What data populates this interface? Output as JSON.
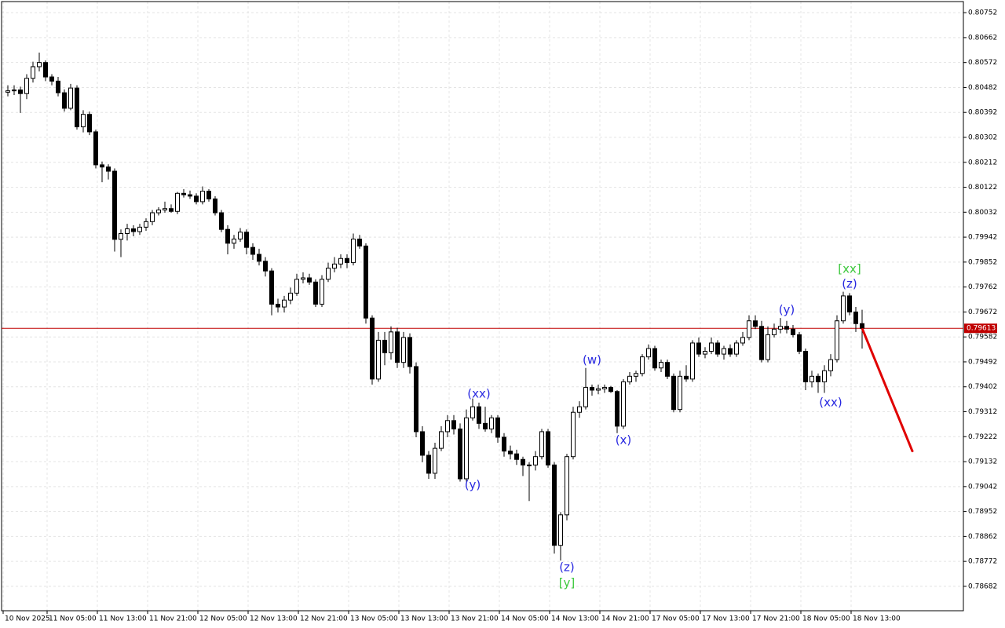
{
  "chart_data": {
    "type": "candlestick",
    "categories": [
      "10 Nov 2025",
      null,
      null,
      null,
      null,
      null,
      null,
      "11 Nov 05:00",
      null,
      null,
      null,
      null,
      null,
      null,
      null,
      "11 Nov 13:00",
      null,
      null,
      null,
      null,
      null,
      null,
      null,
      "11 Nov 21:00",
      null,
      null,
      null,
      null,
      null,
      null,
      null,
      "12 Nov 05:00",
      null,
      null,
      null,
      null,
      null,
      null,
      null,
      "12 Nov 13:00",
      null,
      null,
      null,
      null,
      null,
      null,
      null,
      "12 Nov 21:00",
      null,
      null,
      null,
      null,
      null,
      null,
      null,
      "13 Nov 05:00",
      null,
      null,
      null,
      null,
      null,
      null,
      null,
      "13 Nov 13:00",
      null,
      null,
      null,
      null,
      null,
      null,
      null,
      "13 Nov 21:00",
      null,
      null,
      null,
      null,
      null,
      null,
      null,
      "14 Nov 05:00",
      null,
      null,
      null,
      null,
      null,
      null,
      null,
      "14 Nov 13:00",
      null,
      null,
      null,
      null,
      null,
      null,
      null,
      "14 Nov 21:00",
      null,
      null,
      null,
      null,
      null,
      null,
      null,
      "17 Nov 05:00",
      null,
      null,
      null,
      null,
      null,
      null,
      null,
      "17 Nov 13:00",
      null,
      null,
      null,
      null,
      null,
      null,
      null,
      "17 Nov 21:00",
      null,
      null,
      null,
      null,
      null,
      null,
      null,
      "18 Nov 05:00",
      null,
      null,
      null,
      null,
      null,
      null,
      null,
      "18 Nov 13:00",
      null
    ],
    "candles": [
      [
        0.80465,
        0.8049,
        0.8045,
        0.8047
      ],
      [
        0.8047,
        0.8049,
        0.80455,
        0.80473
      ],
      [
        0.80473,
        0.80485,
        0.8039,
        0.8046
      ],
      [
        0.8046,
        0.8053,
        0.8044,
        0.80515
      ],
      [
        0.80515,
        0.80575,
        0.805,
        0.80557
      ],
      [
        0.80557,
        0.80608,
        0.8054,
        0.80572
      ],
      [
        0.80572,
        0.8058,
        0.80505,
        0.8052
      ],
      [
        0.8052,
        0.8053,
        0.8049,
        0.80505
      ],
      [
        0.80505,
        0.8052,
        0.8045,
        0.80463
      ],
      [
        0.80463,
        0.80475,
        0.80395,
        0.80407
      ],
      [
        0.80407,
        0.80495,
        0.804,
        0.8048
      ],
      [
        0.8048,
        0.8049,
        0.8033,
        0.8034
      ],
      [
        0.8034,
        0.804,
        0.8032,
        0.80385
      ],
      [
        0.80385,
        0.80395,
        0.8031,
        0.80322
      ],
      [
        0.80322,
        0.8033,
        0.8019,
        0.80203
      ],
      [
        0.80203,
        0.80215,
        0.8014,
        0.80195
      ],
      [
        0.80195,
        0.80205,
        0.8015,
        0.8018
      ],
      [
        0.8018,
        0.8019,
        0.7989,
        0.79934
      ],
      [
        0.79934,
        0.7997,
        0.7987,
        0.79955
      ],
      [
        0.79955,
        0.7999,
        0.7993,
        0.79972
      ],
      [
        0.79972,
        0.79985,
        0.79945,
        0.79962
      ],
      [
        0.79962,
        0.7999,
        0.7995,
        0.79978
      ],
      [
        0.79978,
        0.8001,
        0.79965,
        0.79998
      ],
      [
        0.79998,
        0.8004,
        0.79985,
        0.8003
      ],
      [
        0.8003,
        0.8005,
        0.8002,
        0.8004
      ],
      [
        0.8004,
        0.8007,
        0.8003,
        0.80045
      ],
      [
        0.80045,
        0.8006,
        0.8003,
        0.80035
      ],
      [
        0.80035,
        0.80105,
        0.80025,
        0.801
      ],
      [
        0.801,
        0.80115,
        0.80085,
        0.80095
      ],
      [
        0.80095,
        0.8011,
        0.8008,
        0.8009
      ],
      [
        0.8009,
        0.801,
        0.8006,
        0.8007
      ],
      [
        0.8007,
        0.80125,
        0.8006,
        0.80108
      ],
      [
        0.80108,
        0.80115,
        0.8007,
        0.8008
      ],
      [
        0.8008,
        0.8009,
        0.8002,
        0.8003
      ],
      [
        0.8003,
        0.8004,
        0.7996,
        0.7997
      ],
      [
        0.7997,
        0.79985,
        0.7988,
        0.7992
      ],
      [
        0.7992,
        0.7995,
        0.799,
        0.79935
      ],
      [
        0.79935,
        0.79975,
        0.79925,
        0.7996
      ],
      [
        0.7996,
        0.7997,
        0.7988,
        0.79905
      ],
      [
        0.79905,
        0.7992,
        0.7986,
        0.7988
      ],
      [
        0.7988,
        0.799,
        0.7984,
        0.79855
      ],
      [
        0.79855,
        0.7987,
        0.798,
        0.7982
      ],
      [
        0.7982,
        0.7983,
        0.7966,
        0.797
      ],
      [
        0.797,
        0.7972,
        0.7967,
        0.7969
      ],
      [
        0.7969,
        0.7973,
        0.7967,
        0.79715
      ],
      [
        0.79715,
        0.7976,
        0.797,
        0.7974
      ],
      [
        0.7974,
        0.7981,
        0.7973,
        0.7979
      ],
      [
        0.7979,
        0.79815,
        0.79775,
        0.79795
      ],
      [
        0.79795,
        0.7981,
        0.7977,
        0.7978
      ],
      [
        0.7978,
        0.7979,
        0.7969,
        0.797
      ],
      [
        0.797,
        0.79805,
        0.7969,
        0.7979
      ],
      [
        0.7979,
        0.7985,
        0.7978,
        0.7983
      ],
      [
        0.7983,
        0.7987,
        0.79815,
        0.79845
      ],
      [
        0.79845,
        0.7988,
        0.7983,
        0.79865
      ],
      [
        0.79865,
        0.7988,
        0.7983,
        0.7985
      ],
      [
        0.7985,
        0.79955,
        0.7984,
        0.79935
      ],
      [
        0.79935,
        0.7995,
        0.799,
        0.7991
      ],
      [
        0.7991,
        0.7992,
        0.7963,
        0.7965
      ],
      [
        0.7965,
        0.7966,
        0.7941,
        0.7943
      ],
      [
        0.7943,
        0.796,
        0.7942,
        0.7957
      ],
      [
        0.7957,
        0.796,
        0.7948,
        0.79525
      ],
      [
        0.79525,
        0.7962,
        0.795,
        0.796
      ],
      [
        0.796,
        0.79615,
        0.7947,
        0.7949
      ],
      [
        0.7949,
        0.796,
        0.7947,
        0.7958
      ],
      [
        0.7958,
        0.79595,
        0.7945,
        0.79475
      ],
      [
        0.79475,
        0.7949,
        0.7922,
        0.7924
      ],
      [
        0.7924,
        0.7926,
        0.7913,
        0.79155
      ],
      [
        0.79155,
        0.7917,
        0.7907,
        0.7909
      ],
      [
        0.7909,
        0.792,
        0.7907,
        0.7918
      ],
      [
        0.7918,
        0.7926,
        0.7917,
        0.7924
      ],
      [
        0.7924,
        0.793,
        0.7922,
        0.7928
      ],
      [
        0.7928,
        0.793,
        0.7923,
        0.7925
      ],
      [
        0.7925,
        0.7927,
        0.7906,
        0.7907
      ],
      [
        0.7907,
        0.7932,
        0.7906,
        0.7929
      ],
      [
        0.7929,
        0.7936,
        0.7928,
        0.7933
      ],
      [
        0.7933,
        0.79345,
        0.7925,
        0.7927
      ],
      [
        0.7927,
        0.7933,
        0.7924,
        0.7925
      ],
      [
        0.7925,
        0.793,
        0.79235,
        0.7929
      ],
      [
        0.7929,
        0.793,
        0.792,
        0.7922
      ],
      [
        0.7922,
        0.79235,
        0.7915,
        0.7917
      ],
      [
        0.7917,
        0.7919,
        0.7914,
        0.7916
      ],
      [
        0.7916,
        0.79175,
        0.7912,
        0.7914
      ],
      [
        0.7914,
        0.7915,
        0.7908,
        0.7912
      ],
      [
        0.7912,
        0.7913,
        0.7899,
        0.7912
      ],
      [
        0.7912,
        0.7917,
        0.791,
        0.7915
      ],
      [
        0.7915,
        0.7925,
        0.7914,
        0.7924
      ],
      [
        0.7924,
        0.7925,
        0.7911,
        0.7912
      ],
      [
        0.7912,
        0.7913,
        0.788,
        0.7883
      ],
      [
        0.7883,
        0.7895,
        0.78775,
        0.7894
      ],
      [
        0.7894,
        0.7916,
        0.7892,
        0.7915
      ],
      [
        0.7915,
        0.7933,
        0.7914,
        0.7931
      ],
      [
        0.7931,
        0.7935,
        0.7929,
        0.7933
      ],
      [
        0.7933,
        0.7947,
        0.7932,
        0.794
      ],
      [
        0.794,
        0.7941,
        0.7937,
        0.7939
      ],
      [
        0.7939,
        0.7941,
        0.79375,
        0.79395
      ],
      [
        0.79395,
        0.7941,
        0.7938,
        0.794
      ],
      [
        0.794,
        0.79405,
        0.7938,
        0.79385
      ],
      [
        0.79385,
        0.7939,
        0.79235,
        0.7926
      ],
      [
        0.7926,
        0.7943,
        0.7925,
        0.7942
      ],
      [
        0.7942,
        0.79455,
        0.7941,
        0.7944
      ],
      [
        0.7944,
        0.7946,
        0.7942,
        0.7945
      ],
      [
        0.7945,
        0.7952,
        0.7944,
        0.7951
      ],
      [
        0.7951,
        0.79555,
        0.795,
        0.7954
      ],
      [
        0.7954,
        0.7955,
        0.7946,
        0.7947
      ],
      [
        0.7947,
        0.795,
        0.79455,
        0.7949
      ],
      [
        0.7949,
        0.795,
        0.7943,
        0.7944
      ],
      [
        0.7944,
        0.7945,
        0.7931,
        0.7932
      ],
      [
        0.7932,
        0.7946,
        0.7931,
        0.7944
      ],
      [
        0.7944,
        0.7948,
        0.7942,
        0.7943
      ],
      [
        0.7943,
        0.7957,
        0.7942,
        0.7956
      ],
      [
        0.7956,
        0.7958,
        0.7951,
        0.7952
      ],
      [
        0.7952,
        0.79545,
        0.79505,
        0.7953
      ],
      [
        0.7953,
        0.7958,
        0.7952,
        0.7956
      ],
      [
        0.7956,
        0.7957,
        0.7951,
        0.7952
      ],
      [
        0.7952,
        0.7955,
        0.795,
        0.7954
      ],
      [
        0.7954,
        0.79555,
        0.7951,
        0.7952
      ],
      [
        0.7952,
        0.7957,
        0.7951,
        0.7956
      ],
      [
        0.7956,
        0.796,
        0.7955,
        0.7958
      ],
      [
        0.7958,
        0.7966,
        0.7957,
        0.7964
      ],
      [
        0.7964,
        0.7966,
        0.7961,
        0.7962
      ],
      [
        0.7962,
        0.7964,
        0.7949,
        0.795
      ],
      [
        0.795,
        0.7962,
        0.7949,
        0.7959
      ],
      [
        0.7959,
        0.7963,
        0.7958,
        0.7961
      ],
      [
        0.7961,
        0.7965,
        0.79595,
        0.7962
      ],
      [
        0.7962,
        0.7964,
        0.79595,
        0.7961
      ],
      [
        0.7961,
        0.79625,
        0.7958,
        0.7959
      ],
      [
        0.7959,
        0.796,
        0.7952,
        0.7953
      ],
      [
        0.7953,
        0.7954,
        0.7939,
        0.7942
      ],
      [
        0.7942,
        0.7946,
        0.794,
        0.7944
      ],
      [
        0.7944,
        0.7945,
        0.7938,
        0.7942
      ],
      [
        0.7942,
        0.7948,
        0.7938,
        0.7946
      ],
      [
        0.7946,
        0.7952,
        0.7944,
        0.795
      ],
      [
        0.795,
        0.7966,
        0.7949,
        0.7964
      ],
      [
        0.7964,
        0.79745,
        0.7963,
        0.7973
      ],
      [
        0.7973,
        0.7974,
        0.7966,
        0.79672
      ],
      [
        0.79672,
        0.7969,
        0.796,
        0.7963
      ],
      [
        0.7963,
        0.7968,
        0.7954,
        0.79613
      ]
    ],
    "ylim": [
      0.78594,
      0.80792
    ],
    "yticks": [
      0.80752,
      0.80662,
      0.80572,
      0.80482,
      0.80392,
      0.80302,
      0.80212,
      0.80122,
      0.80032,
      0.79942,
      0.79852,
      0.79762,
      0.79672,
      0.79582,
      0.79492,
      0.79402,
      0.79312,
      0.79222,
      0.79132,
      0.79042,
      0.78952,
      0.78862,
      0.78772,
      0.78682
    ],
    "grid": true,
    "last_price": {
      "value": 0.79613,
      "color": "#c00000"
    },
    "projection": {
      "color": "#e00000",
      "values": [
        0.79613,
        0.7917
      ]
    },
    "annotations": [
      {
        "text": "(xx)",
        "color": "#2828e0"
      },
      {
        "text": "(y)",
        "color": "#2828e0"
      },
      {
        "text": "(w)",
        "color": "#2828e0"
      },
      {
        "text": "(x)",
        "color": "#2828e0"
      },
      {
        "text": "(z)",
        "color": "#2828e0"
      },
      {
        "text": "[y]",
        "color": "#3cc83c"
      },
      {
        "text": "(y)",
        "color": "#2828e0"
      },
      {
        "text": "(xx)",
        "color": "#2828e0"
      },
      {
        "text": "(z)",
        "color": "#2828e0"
      },
      {
        "text": "[xx]",
        "color": "#3cc83c"
      }
    ]
  }
}
